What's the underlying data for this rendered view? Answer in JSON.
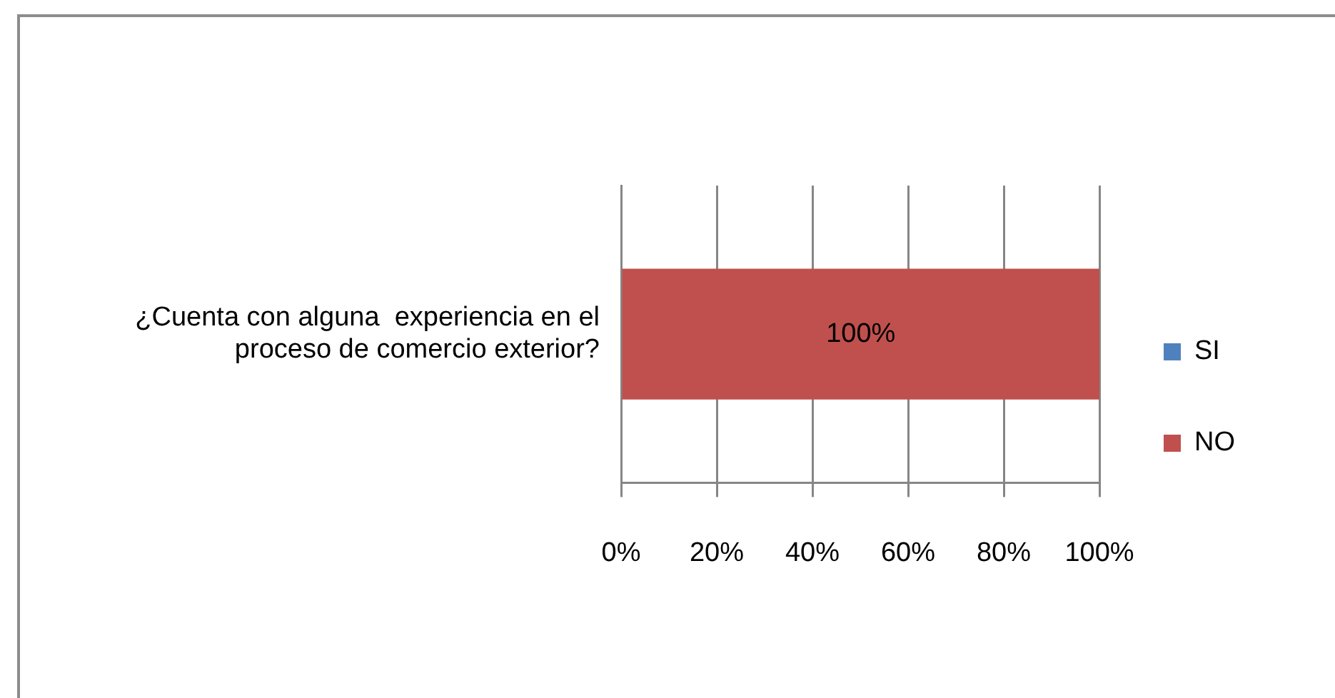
{
  "chart_data": {
    "type": "bar",
    "orientation": "horizontal",
    "stacked": true,
    "categories": [
      "¿Cuenta con alguna  experiencia en el proceso de comercio exterior?"
    ],
    "series": [
      {
        "name": "SI",
        "color": "#4f81bd",
        "values": [
          0
        ],
        "value_labels": [
          null
        ]
      },
      {
        "name": "NO",
        "color": "#c0504d",
        "values": [
          100
        ],
        "value_labels": [
          "100%"
        ]
      }
    ],
    "xlim": [
      0,
      100
    ],
    "xticks": [
      {
        "value": 0,
        "label": "0%"
      },
      {
        "value": 20,
        "label": "20%"
      },
      {
        "value": 40,
        "label": "40%"
      },
      {
        "value": 60,
        "label": "60%"
      },
      {
        "value": 80,
        "label": "80%"
      },
      {
        "value": 100,
        "label": "100%"
      }
    ],
    "grid": "x",
    "legend": "right"
  }
}
